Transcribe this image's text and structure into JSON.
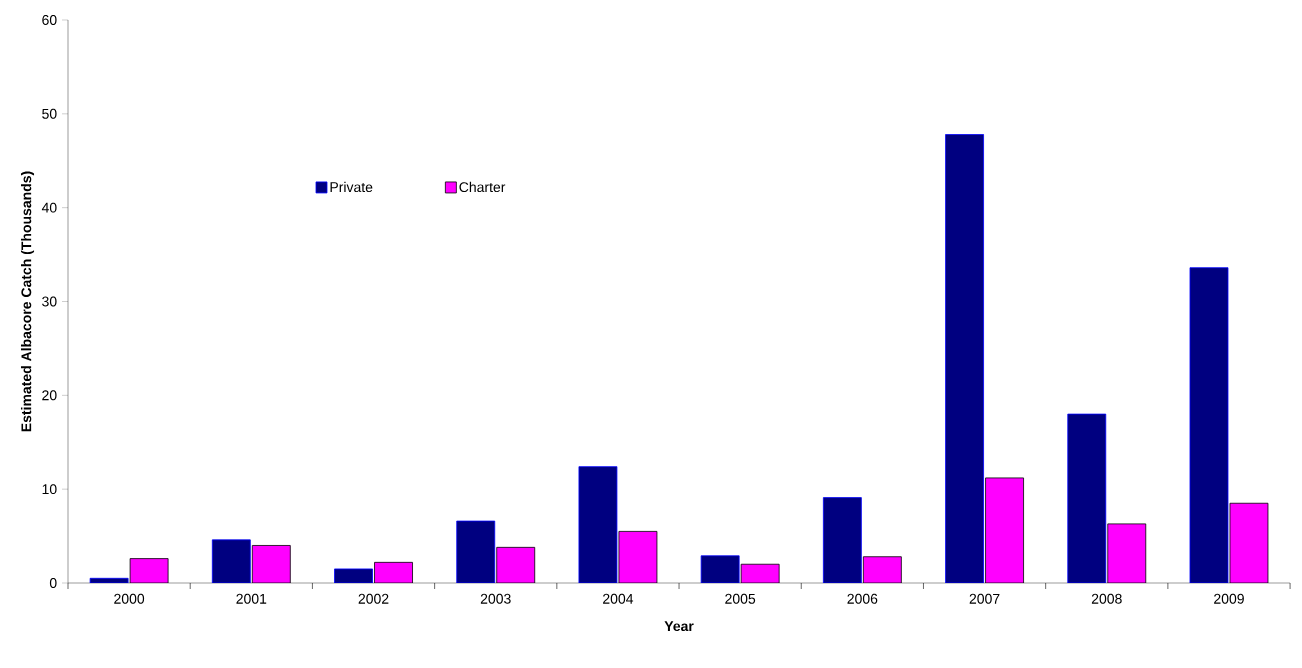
{
  "chart_data": {
    "type": "bar",
    "xlabel": "Year",
    "ylabel": "Estimated Albacore Catch (Thousands)",
    "categories": [
      "2000",
      "2001",
      "2002",
      "2003",
      "2004",
      "2005",
      "2006",
      "2007",
      "2008",
      "2009"
    ],
    "series": [
      {
        "name": "Private",
        "color": "#000080",
        "values": [
          0.5,
          4.6,
          1.5,
          6.6,
          12.4,
          2.9,
          9.1,
          47.8,
          18.0,
          33.6
        ]
      },
      {
        "name": "Charter",
        "color": "#ff00ff",
        "values": [
          2.6,
          4.0,
          2.2,
          3.8,
          5.5,
          2.0,
          2.8,
          11.2,
          6.3,
          8.5
        ]
      }
    ],
    "ylim": [
      0,
      60
    ],
    "yticks": [
      0,
      10,
      20,
      30,
      40,
      50,
      60
    ],
    "grid": false,
    "legend": "top left"
  }
}
